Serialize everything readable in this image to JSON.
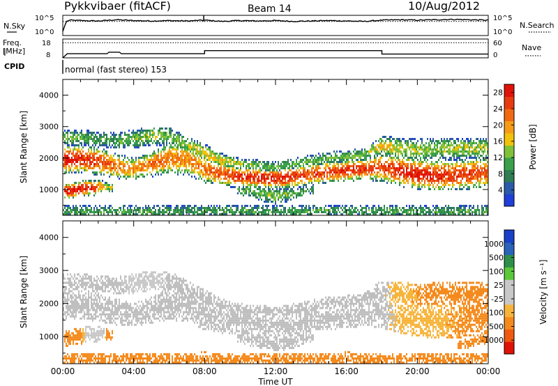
{
  "header": {
    "station": "Pykkvibaer (fitACF)",
    "beam": "Beam 14",
    "date": "10/Aug/2012"
  },
  "strip_labels": {
    "nsky": "N.Sky",
    "nsearch": "N.Search",
    "freq_top": "Freq.",
    "freq_bottom": "[MHz]",
    "nave": "Nave",
    "cpid": "CPID",
    "cpid_value": "normal (fast stereo) 153"
  },
  "strip_ticks": {
    "noise_left": [
      "10^5",
      "10^0"
    ],
    "noise_right": [
      "10^5",
      "10^0"
    ],
    "freq_left": [
      "18",
      "8"
    ],
    "nave_right": [
      "60",
      "0"
    ]
  },
  "x_axis": {
    "label": "Time UT",
    "ticks": [
      "00:00",
      "04:00",
      "08:00",
      "12:00",
      "16:00",
      "20:00",
      "00:00"
    ],
    "range_hours": [
      0,
      24
    ]
  },
  "colors": {
    "power_scale": [
      "#1f3fd8",
      "#2a5aa8",
      "#2f7d55",
      "#3aa04a",
      "#7fc23a",
      "#f2c20a",
      "#f59b18",
      "#f06a12",
      "#e83a10",
      "#e01208"
    ],
    "velocity_scale": [
      "#e01208",
      "#ef5a10",
      "#f58a1c",
      "#f7b43a",
      "#c8c8c8",
      "#c8c8c8",
      "#5bc83a",
      "#2f8f4a",
      "#2a64b8",
      "#1a3fc8"
    ],
    "ground_scatter": "#bebebe"
  },
  "chart_data": [
    {
      "type": "line",
      "panel": "noise",
      "series": [
        {
          "name": "N.Sky",
          "x": [
            0,
            0.2,
            0.4,
            1,
            2,
            3,
            4,
            5,
            6,
            7,
            8,
            9,
            10,
            11,
            12,
            13,
            14,
            15,
            16,
            17,
            18,
            19,
            20,
            21,
            22,
            23,
            24
          ],
          "values": [
            1,
            3.5,
            3.8,
            3.7,
            3.6,
            3.9,
            3.7,
            3.6,
            3.7,
            3.6,
            3.8,
            3.5,
            3.7,
            3.6,
            3.7,
            3.5,
            3.6,
            3.7,
            3.6,
            3.5,
            3.8,
            3.9,
            3.8,
            3.9,
            4.0,
            3.9,
            3.8
          ]
        },
        {
          "name": "N.Search",
          "x": [
            0,
            24
          ],
          "values": [
            3.5,
            3.5
          ]
        }
      ],
      "y_scale": "log",
      "ylim": [
        0,
        5
      ],
      "left_ticks": [
        "10^5",
        "10^0"
      ],
      "right_ticks": [
        "10^5",
        "10^0"
      ]
    },
    {
      "type": "line",
      "panel": "frequency",
      "series": [
        {
          "name": "Freq.",
          "x": [
            0,
            0.25,
            2.5,
            2.6,
            3.2,
            3.3,
            8.0,
            8.0,
            18.0,
            18.0,
            24
          ],
          "values": [
            8,
            10.2,
            10.2,
            11.0,
            11.0,
            10.2,
            10.2,
            11.8,
            11.8,
            10.0,
            10.0
          ]
        },
        {
          "name": "Nave",
          "x": [
            0,
            24
          ],
          "values": [
            48,
            48
          ]
        }
      ],
      "ylim_freq": [
        8,
        18
      ],
      "ylim_nave": [
        0,
        60
      ]
    },
    {
      "type": "heatmap",
      "panel": "power",
      "xlabel": "",
      "ylabel": "Slant Range [km]",
      "xlim": [
        0,
        24
      ],
      "ylim": [
        180,
        4500
      ],
      "y_ticks": [
        1000,
        2000,
        3000,
        4000
      ],
      "colorbar_label": "Power [dB]",
      "colorbar_ticks": [
        4,
        8,
        12,
        16,
        20,
        24,
        28
      ],
      "colorbar_range": [
        0,
        30
      ],
      "bands": [
        {
          "name": "main_echo",
          "x": [
            0,
            1,
            2,
            3,
            4,
            5,
            6,
            7,
            8,
            9,
            10,
            11,
            12,
            13,
            14,
            15,
            16,
            17,
            18,
            19,
            20,
            21,
            22,
            23,
            24
          ],
          "center_km": [
            1950,
            1980,
            1900,
            1750,
            1650,
            1800,
            2000,
            1950,
            1650,
            1500,
            1400,
            1380,
            1350,
            1400,
            1500,
            1550,
            1600,
            1650,
            1700,
            1600,
            1500,
            1450,
            1450,
            1500,
            1550
          ],
          "width_km": [
            450,
            450,
            450,
            400,
            350,
            400,
            500,
            500,
            450,
            400,
            350,
            350,
            350,
            350,
            350,
            350,
            350,
            350,
            450,
            500,
            500,
            500,
            500,
            500,
            500
          ],
          "peak_db": [
            28,
            27,
            25,
            22,
            20,
            23,
            22,
            21,
            22,
            24,
            26,
            27,
            27,
            26,
            25,
            25,
            26,
            26,
            24,
            27,
            28,
            27,
            26,
            25,
            24
          ]
        },
        {
          "name": "upper_echo",
          "x": [
            0,
            1,
            2,
            3,
            4,
            5,
            6,
            7,
            8,
            9,
            10,
            11,
            12,
            13,
            14,
            15,
            16,
            17,
            18,
            19,
            20,
            21,
            22,
            23,
            24
          ],
          "center_km": [
            2650,
            2650,
            2600,
            2550,
            2600,
            2700,
            2700,
            2400,
            2150,
            1900,
            1800,
            1750,
            1700,
            1800,
            1900,
            2000,
            2050,
            2100,
            2400,
            2300,
            2250,
            2300,
            2300,
            2300,
            2300
          ],
          "width_km": [
            250,
            250,
            250,
            250,
            300,
            300,
            300,
            300,
            300,
            250,
            200,
            200,
            200,
            200,
            200,
            200,
            200,
            200,
            300,
            350,
            350,
            350,
            350,
            350,
            350
          ],
          "peak_db": [
            12,
            12,
            10,
            10,
            12,
            14,
            12,
            14,
            16,
            16,
            14,
            12,
            12,
            12,
            12,
            12,
            12,
            12,
            18,
            16,
            14,
            14,
            14,
            14,
            14
          ]
        },
        {
          "name": "near_echo",
          "x": [
            0.3,
            0.8,
            1.3,
            1.8,
            2.2,
            2.6
          ],
          "center_km": [
            950,
            1000,
            1050,
            1050,
            1100,
            1050
          ],
          "width_km": [
            250,
            250,
            250,
            250,
            200,
            150
          ],
          "peak_db": [
            28,
            29,
            28,
            27,
            20,
            14
          ]
        },
        {
          "name": "lower_arc",
          "x": [
            10,
            11,
            12,
            13,
            14
          ],
          "center_km": [
            1000,
            900,
            780,
            850,
            1000
          ],
          "width_km": [
            200,
            250,
            250,
            200,
            150
          ],
          "peak_db": [
            10,
            12,
            14,
            12,
            10
          ]
        },
        {
          "name": "near_range",
          "x": [
            0,
            4,
            8,
            12,
            16,
            20,
            24
          ],
          "center_km": [
            300,
            300,
            320,
            300,
            320,
            300,
            300
          ],
          "width_km": [
            200,
            200,
            200,
            200,
            200,
            200,
            200
          ],
          "peak_db": [
            10,
            10,
            10,
            10,
            10,
            10,
            10
          ]
        }
      ]
    },
    {
      "type": "heatmap",
      "panel": "velocity",
      "xlabel": "Time UT",
      "ylabel": "Slant Range [km]",
      "xlim": [
        0,
        24
      ],
      "ylim": [
        180,
        4500
      ],
      "y_ticks": [
        1000,
        2000,
        3000,
        4000
      ],
      "colorbar_label": "Velocity [m s⁻¹]",
      "colorbar_ticks": [
        1000,
        500,
        100,
        25,
        -25,
        -100,
        -500,
        -1000
      ],
      "bands": [
        {
          "name": "main_echo",
          "x": [
            0,
            1,
            2,
            3,
            4,
            5,
            6,
            7,
            8,
            9,
            10,
            11,
            12,
            13,
            14,
            15,
            16,
            17,
            18,
            19,
            20,
            21,
            22,
            23,
            24
          ],
          "center_km": [
            1950,
            1980,
            1900,
            1750,
            1650,
            1800,
            2000,
            1950,
            1650,
            1500,
            1400,
            1380,
            1350,
            1400,
            1500,
            1550,
            1600,
            1650,
            1700,
            1600,
            1500,
            1450,
            1450,
            1500,
            1550
          ],
          "width_km": [
            450,
            450,
            450,
            400,
            350,
            400,
            500,
            500,
            450,
            400,
            350,
            350,
            350,
            350,
            350,
            350,
            350,
            350,
            450,
            500,
            500,
            500,
            500,
            500,
            500
          ],
          "velocity": [
            0,
            0,
            0,
            0,
            0,
            0,
            0,
            0,
            0,
            0,
            0,
            0,
            0,
            0,
            0,
            0,
            0,
            0,
            0,
            -40,
            -60,
            -80,
            -100,
            -120,
            -150
          ]
        },
        {
          "name": "upper_echo",
          "x": [
            0,
            1,
            2,
            3,
            4,
            5,
            6,
            7,
            8,
            9,
            10,
            11,
            12,
            13,
            14,
            15,
            16,
            17,
            18,
            19,
            20,
            21,
            22,
            23,
            24
          ],
          "center_km": [
            2650,
            2650,
            2600,
            2550,
            2600,
            2700,
            2700,
            2400,
            2150,
            1900,
            1800,
            1750,
            1700,
            1800,
            1900,
            2000,
            2050,
            2100,
            2400,
            2300,
            2250,
            2300,
            2300,
            2300,
            2300
          ],
          "width_km": [
            250,
            250,
            250,
            250,
            300,
            300,
            300,
            300,
            300,
            250,
            200,
            200,
            200,
            200,
            200,
            200,
            200,
            200,
            300,
            350,
            350,
            350,
            350,
            350,
            350
          ],
          "velocity": [
            0,
            0,
            0,
            0,
            60,
            80,
            0,
            0,
            0,
            0,
            0,
            0,
            0,
            0,
            0,
            0,
            0,
            0,
            0,
            -60,
            -100,
            -150,
            -250,
            -300,
            -300
          ]
        },
        {
          "name": "near_echo",
          "x": [
            0.3,
            0.8,
            1.3,
            1.8,
            2.2,
            2.6
          ],
          "center_km": [
            950,
            1000,
            1050,
            1050,
            1100,
            1050
          ],
          "width_km": [
            250,
            250,
            250,
            250,
            200,
            150
          ],
          "velocity": [
            -300,
            -400,
            60,
            80,
            60,
            -200
          ]
        },
        {
          "name": "lower_arc",
          "x": [
            10,
            11,
            12,
            13,
            14
          ],
          "center_km": [
            1000,
            900,
            780,
            850,
            1000
          ],
          "width_km": [
            200,
            250,
            250,
            200,
            150
          ],
          "velocity": [
            0,
            0,
            0,
            0,
            0
          ]
        },
        {
          "name": "late_near",
          "x": [
            22.5,
            23.2,
            24
          ],
          "center_km": [
            750,
            850,
            950
          ],
          "width_km": [
            150,
            150,
            150
          ],
          "velocity": [
            -250,
            -300,
            -300
          ]
        },
        {
          "name": "near_range",
          "x": [
            0,
            4,
            8,
            12,
            16,
            20,
            24
          ],
          "center_km": [
            320,
            320,
            330,
            320,
            330,
            320,
            320
          ],
          "width_km": [
            200,
            200,
            200,
            200,
            200,
            200,
            200
          ],
          "velocity": [
            -150,
            -150,
            -150,
            -150,
            -150,
            -150,
            -150
          ]
        }
      ]
    }
  ]
}
